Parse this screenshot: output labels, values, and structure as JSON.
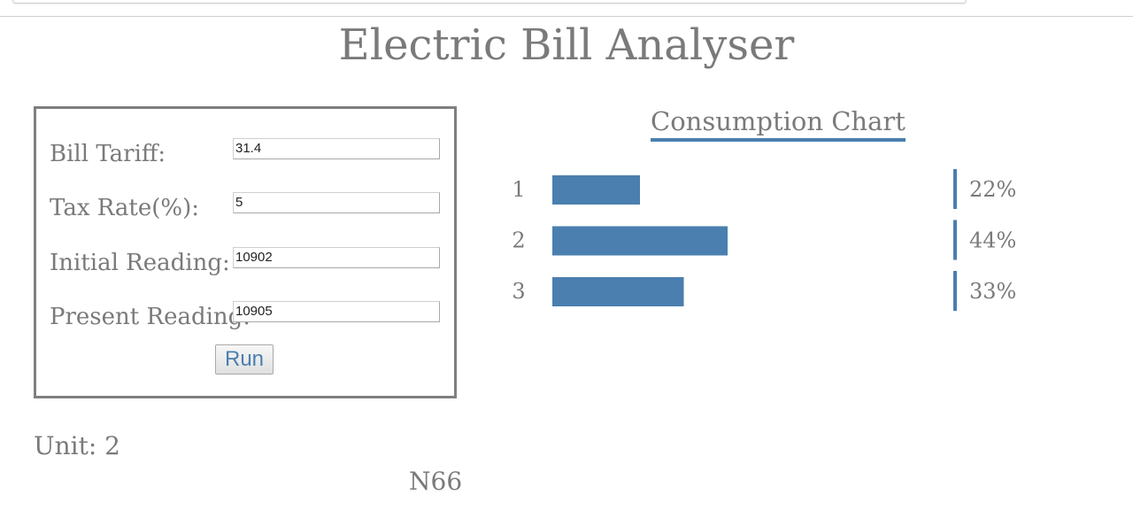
{
  "page": {
    "title": "Electric Bill Analyser"
  },
  "form": {
    "fields": [
      {
        "label": "Bill Tariff:",
        "value": "31.4"
      },
      {
        "label": "Tax Rate(%):",
        "value": "5"
      },
      {
        "label": "Initial Reading:",
        "value": "10902"
      },
      {
        "label": "Present Reading:",
        "value": "10905"
      }
    ],
    "run_label": "Run"
  },
  "result": {
    "unit_text": "Unit: 2",
    "footer_code": "N66"
  },
  "colors": {
    "accent": "#4a7faf",
    "text": "#7a7a7a",
    "border": "#7f7f7f"
  },
  "chart_data": {
    "type": "bar",
    "title": "Consumption Chart",
    "categories": [
      "1",
      "2",
      "3"
    ],
    "values": [
      22,
      44,
      33
    ],
    "value_labels": [
      "22%",
      "44%",
      "33%"
    ],
    "orientation": "horizontal",
    "xlim": [
      0,
      100
    ],
    "grid": false
  }
}
